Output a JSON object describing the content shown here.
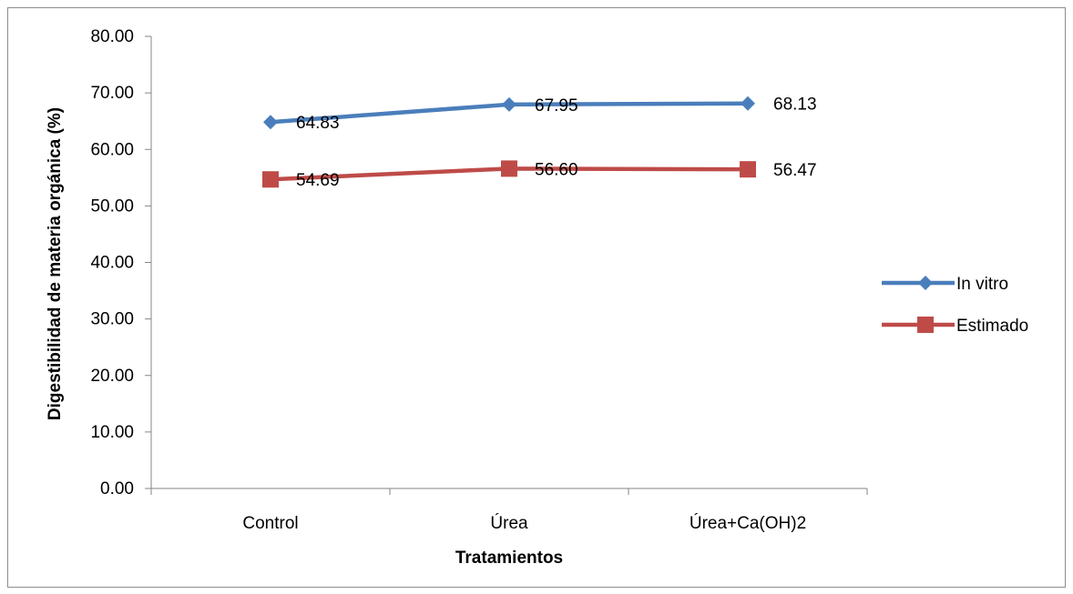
{
  "chart_data": {
    "type": "line",
    "title": "",
    "xlabel": "Tratamientos",
    "ylabel": "Digestibilidad de materia orgánica (%)",
    "categories": [
      "Control",
      "Úrea",
      "Úrea+Ca(OH)2"
    ],
    "ylim": [
      0,
      80
    ],
    "ytick_step": 10,
    "ytick_labels": [
      "0.00",
      "10.00",
      "20.00",
      "30.00",
      "40.00",
      "50.00",
      "60.00",
      "70.00",
      "80.00"
    ],
    "grid": false,
    "legend_position": "right",
    "series": [
      {
        "name": "In vitro",
        "values": [
          64.83,
          67.95,
          68.13
        ],
        "labels": [
          "64.83",
          "67.95",
          "68.13"
        ],
        "color": "#4a7ebb",
        "marker": "diamond"
      },
      {
        "name": "Estimado",
        "values": [
          54.69,
          56.6,
          56.47
        ],
        "labels": [
          "54.69",
          "56.60",
          "56.47"
        ],
        "color": "#be4b48",
        "marker": "square"
      }
    ]
  }
}
